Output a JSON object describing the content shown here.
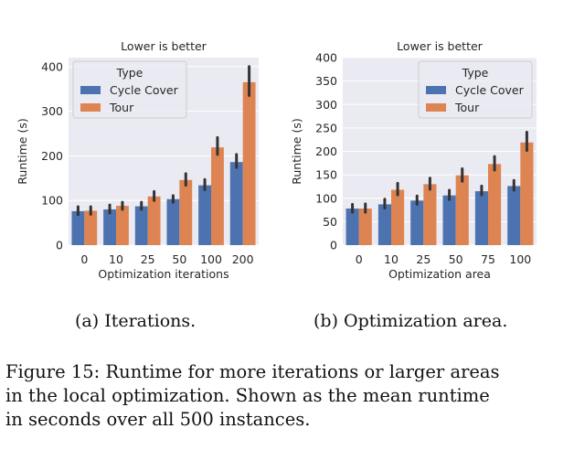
{
  "figure": {
    "sub_captions": [
      "(a) Iterations.",
      "(b) Optimization area."
    ],
    "caption_lines": [
      "Figure 15: Runtime for more iterations or larger areas",
      "in the local optimization. Shown as the mean runtime",
      "in seconds over all 500 instances."
    ]
  },
  "colors": {
    "cycle_cover": "#4c72b0",
    "tour": "#dd8452",
    "plot_bg": "#eaeaf2",
    "error_bar": "#333333"
  },
  "chart_data": [
    {
      "type": "bar",
      "title": "Lower is better",
      "xlabel": "Optimization iterations",
      "ylabel": "Runtime (s)",
      "categories": [
        "0",
        "10",
        "25",
        "50",
        "100",
        "200"
      ],
      "ylim": [
        0,
        420
      ],
      "yticks": [
        0,
        100,
        200,
        300,
        400
      ],
      "grid": true,
      "legend": {
        "title": "Type",
        "placement": "top-left"
      },
      "series": [
        {
          "name": "Cycle Cover",
          "values": [
            76,
            80,
            87,
            103,
            134,
            186
          ],
          "err_low": [
            68,
            72,
            80,
            96,
            124,
            174
          ],
          "err_high": [
            86,
            90,
            96,
            111,
            147,
            203
          ]
        },
        {
          "name": "Tour",
          "values": [
            77,
            88,
            109,
            146,
            219,
            365
          ],
          "err_low": [
            69,
            80,
            100,
            134,
            203,
            335
          ],
          "err_high": [
            86,
            96,
            120,
            160,
            241,
            400
          ]
        }
      ]
    },
    {
      "type": "bar",
      "title": "Lower is better",
      "xlabel": "Optimization area",
      "ylabel": "Runtime (s)",
      "categories": [
        "0",
        "10",
        "25",
        "50",
        "75",
        "100"
      ],
      "ylim": [
        0,
        400
      ],
      "yticks": [
        0,
        50,
        100,
        150,
        200,
        250,
        300,
        350,
        400
      ],
      "grid": true,
      "legend": {
        "title": "Type",
        "placement": "top-right"
      },
      "series": [
        {
          "name": "Cycle Cover",
          "values": [
            78,
            87,
            95,
            106,
            115,
            126
          ],
          "err_low": [
            70,
            79,
            87,
            97,
            107,
            117
          ],
          "err_high": [
            87,
            98,
            105,
            117,
            126,
            138
          ]
        },
        {
          "name": "Tour",
          "values": [
            78,
            118,
            130,
            149,
            173,
            219
          ],
          "err_low": [
            70,
            107,
            119,
            136,
            160,
            202
          ],
          "err_high": [
            88,
            132,
            143,
            163,
            189,
            241
          ]
        }
      ]
    }
  ]
}
